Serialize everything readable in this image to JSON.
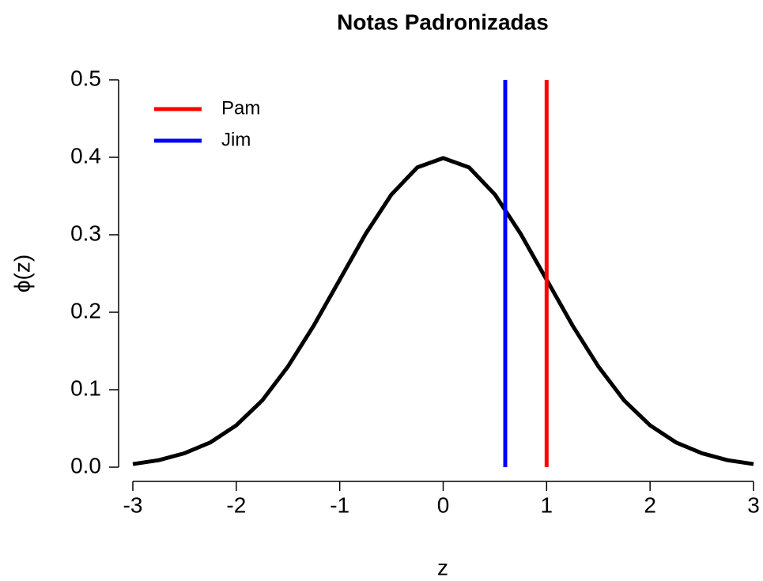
{
  "chart_data": {
    "type": "line",
    "title": "Notas Padronizadas",
    "x_label": "z",
    "y_label": "ϕ(z)",
    "x": [
      -3,
      -2.75,
      -2.5,
      -2.25,
      -2,
      -1.75,
      -1.5,
      -1.25,
      -1,
      -0.75,
      -0.5,
      -0.25,
      0,
      0.25,
      0.5,
      0.75,
      1,
      1.25,
      1.5,
      1.75,
      2,
      2.25,
      2.5,
      2.75,
      3
    ],
    "series": [
      {
        "color": "#000000",
        "values": [
          0.004,
          0.009,
          0.018,
          0.032,
          0.054,
          0.086,
          0.13,
          0.183,
          0.242,
          0.301,
          0.352,
          0.387,
          0.399,
          0.387,
          0.352,
          0.301,
          0.242,
          0.183,
          0.13,
          0.086,
          0.054,
          0.032,
          0.018,
          0.009,
          0.004
        ]
      }
    ],
    "vlines": [
      {
        "name": "Pam",
        "color": "#ff0000",
        "x": 1
      },
      {
        "name": "Jim",
        "color": "#0000ff",
        "x": 0.6
      }
    ],
    "xlim": [
      -3,
      3
    ],
    "xticks": [
      -3,
      -2,
      -1,
      0,
      1,
      2,
      3
    ],
    "ylim": [
      0,
      0.5
    ],
    "yticks": [
      {
        "value": 0,
        "label": "0.0"
      },
      0.1,
      0.2,
      0.3,
      0.4,
      0.5
    ],
    "legend": "top-left",
    "grid": false
  }
}
